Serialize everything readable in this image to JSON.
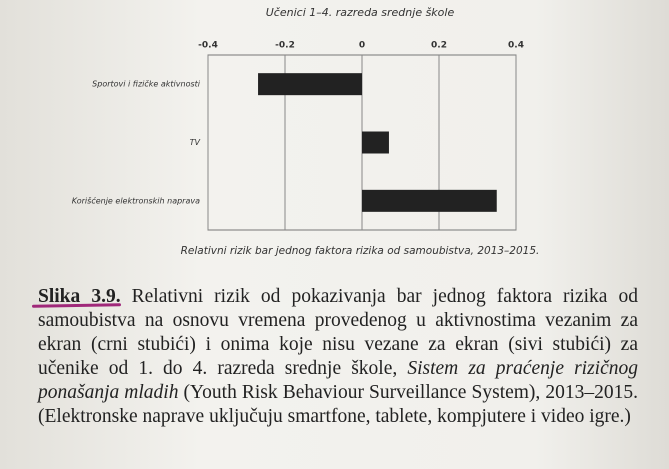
{
  "chart_data": {
    "type": "barh",
    "title": "Učenici 1–4. razreda srednje škole",
    "xlabel": "Relativni rizik bar jednog faktora rizika od samoubistva, 2013–2015.",
    "categories": [
      "Sportovi i fizičke aktivnosti",
      "TV",
      "Korišćenje elektronskih naprava"
    ],
    "values": [
      -0.27,
      0.07,
      0.35
    ],
    "color": "#222222",
    "xlim": [
      -0.4,
      0.4
    ],
    "xticks": [
      -0.4,
      -0.2,
      0,
      0.2,
      0.4
    ],
    "grid": true,
    "caption": {
      "label": "Slika 3.9.",
      "segments": [
        {
          "text": " Relativni rizik od pokazivanja bar jednog faktora rizika od samoubistva na osnovu vremena provedenog u aktivnostima vezanim za ekran (crni stubići) i onima koje nisu vezane za ekran (sivi stubići) za učenike od 1. do 4. razreda srednje škole, ",
          "italic": false
        },
        {
          "text": "Sistem za praćenje rizičnog ponašanja mladih",
          "italic": true
        },
        {
          "text": " (Youth Risk Behaviour Surveillance System), 2013–2015. (Elektronske naprave uključuju smartfone, tablete, kompjutere i video igre.)",
          "italic": false
        }
      ]
    }
  }
}
